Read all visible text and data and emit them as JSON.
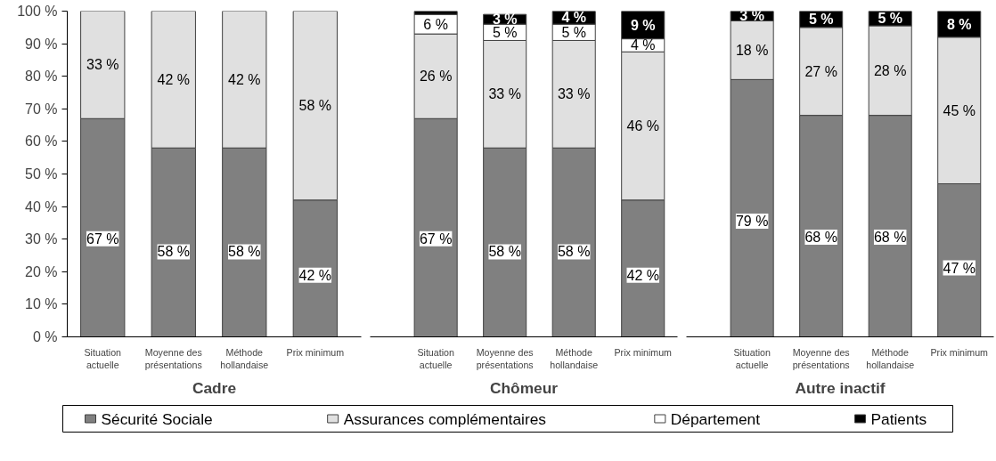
{
  "chart_data": [
    {
      "type": "bar",
      "stacked": true,
      "title": "Cadre",
      "categories": [
        "Situation\nactuelle",
        "Moyenne des\nprésentations",
        "Méthode\nhollandaise",
        "Prix minimum"
      ],
      "ylim": [
        0,
        100
      ],
      "yticks": [
        {
          "value": 0,
          "label": "0 %"
        },
        {
          "value": 10,
          "label": "10 %"
        },
        {
          "value": 20,
          "label": "20 %"
        },
        {
          "value": 30,
          "label": "30 %"
        },
        {
          "value": 40,
          "label": "40 %"
        },
        {
          "value": 50,
          "label": "50 %"
        },
        {
          "value": 60,
          "label": "60 %"
        },
        {
          "value": 70,
          "label": "70 %"
        },
        {
          "value": 80,
          "label": "80 %"
        },
        {
          "value": 90,
          "label": "90 %"
        },
        {
          "value": 100,
          "label": "100 %"
        }
      ],
      "series": [
        {
          "color": "#808080",
          "values": [
            67,
            58,
            58,
            42
          ],
          "value_labels": [
            "67 %",
            "58 %",
            "58 %",
            "42 %"
          ]
        },
        {
          "color": "#e0e0e0",
          "values": [
            33,
            42,
            42,
            58
          ],
          "value_labels": [
            "33 %",
            "42 %",
            "42 %",
            "58 %"
          ]
        }
      ]
    },
    {
      "type": "bar",
      "stacked": true,
      "title": "Chômeur",
      "categories": [
        "Situation\nactuelle",
        "Moyenne des\nprésentations",
        "Méthode\nhollandaise",
        "Prix minimum"
      ],
      "ylim": [
        0,
        100
      ],
      "tick_labels": "x",
      "legend": "bottom",
      "series": [
        {
          "name": "Sécurité Sociale",
          "color": "#808080",
          "values": [
            67,
            58,
            58,
            42
          ],
          "value_labels": [
            "67 %",
            "58 %",
            "58 %",
            "42 %"
          ]
        },
        {
          "name": "Assurances complémentaires",
          "color": "#e0e0e0",
          "values": [
            26,
            33,
            33,
            45.5
          ],
          "value_labels": [
            "26 %",
            "33 %",
            "33 %",
            "46 %"
          ]
        },
        {
          "name": "Département",
          "color": "#ffffff",
          "values": [
            6,
            5,
            5,
            4
          ],
          "value_labels": [
            "6 %",
            "5 %",
            "5 %",
            "4 %"
          ]
        },
        {
          "name": "Patients",
          "color": "#000000",
          "values": [
            1,
            3,
            4,
            8.5
          ],
          "value_labels": [
            null,
            "3 %",
            "4 %",
            "9 %"
          ]
        }
      ]
    },
    {
      "type": "bar",
      "stacked": true,
      "title": "Autre inactif",
      "categories": [
        "Situation\nactuelle",
        "Moyenne des\nprésentations",
        "Méthode\nhollandaise",
        "Prix minimum"
      ],
      "ylim": [
        0,
        100
      ],
      "tick_labels": "x",
      "series": [
        {
          "color": "#808080",
          "values": [
            79,
            68,
            68,
            47
          ],
          "value_labels": [
            "79 %",
            "68 %",
            "68 %",
            "47 %"
          ]
        },
        {
          "color": "#e0e0e0",
          "values": [
            18,
            27,
            27.5,
            45
          ],
          "value_labels": [
            "18 %",
            "27 %",
            "28 %",
            "45 %"
          ]
        },
        {
          "color": "#000000",
          "values": [
            3,
            5,
            4.5,
            8
          ],
          "value_labels": [
            "3 %",
            "5 %",
            "5 %",
            "8 %"
          ]
        }
      ]
    }
  ]
}
